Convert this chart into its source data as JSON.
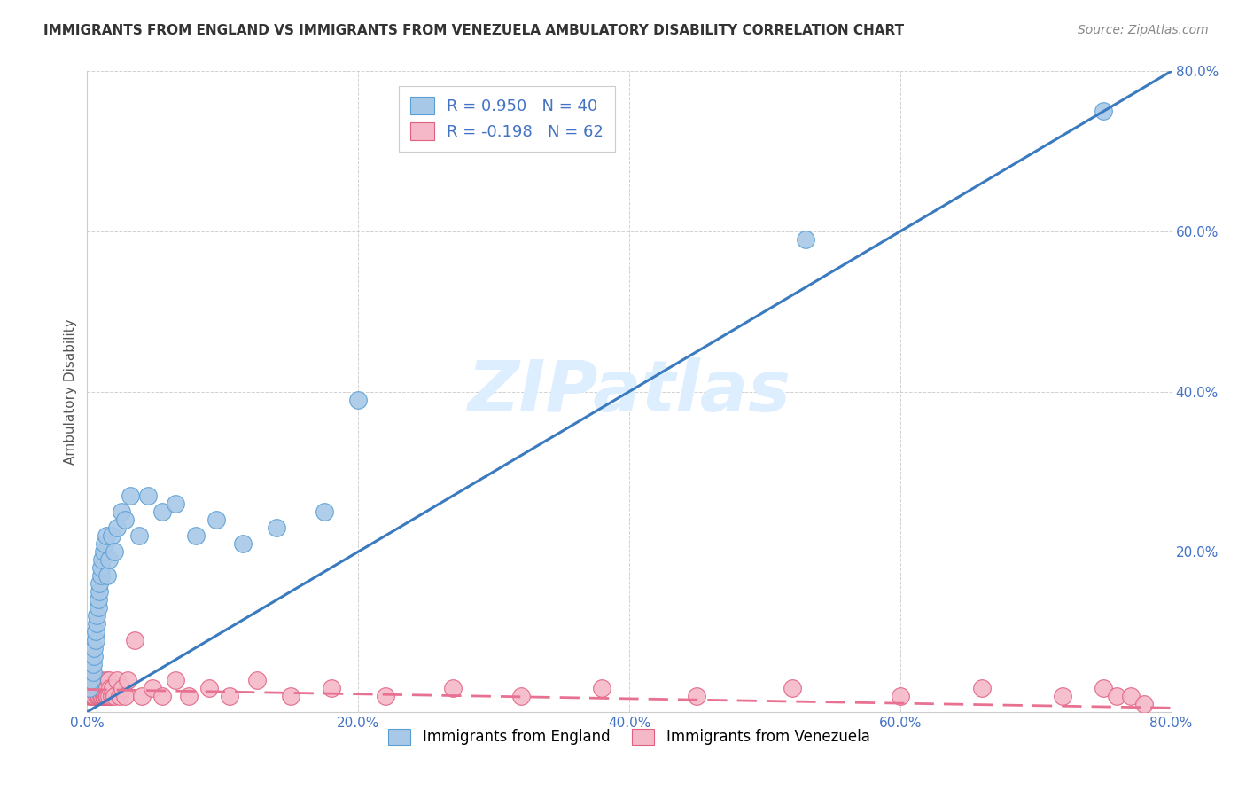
{
  "title": "IMMIGRANTS FROM ENGLAND VS IMMIGRANTS FROM VENEZUELA AMBULATORY DISABILITY CORRELATION CHART",
  "source": "Source: ZipAtlas.com",
  "ylabel": "Ambulatory Disability",
  "xlim": [
    0.0,
    0.8
  ],
  "ylim": [
    0.0,
    0.8
  ],
  "xticks": [
    0.0,
    0.2,
    0.4,
    0.6,
    0.8
  ],
  "yticks": [
    0.0,
    0.2,
    0.4,
    0.6,
    0.8
  ],
  "xtick_labels": [
    "0.0%",
    "20.0%",
    "40.0%",
    "60.0%",
    "80.0%"
  ],
  "ytick_labels": [
    "",
    "20.0%",
    "40.0%",
    "60.0%",
    "80.0%"
  ],
  "england_color": "#a8c8e8",
  "england_edge_color": "#5a9fd4",
  "venezuela_color": "#f4b8c8",
  "venezuela_edge_color": "#e06080",
  "england_R": 0.95,
  "england_N": 40,
  "venezuela_R": -0.198,
  "venezuela_N": 62,
  "england_line_color": "#3a7abf",
  "venezuela_line_color": "#e87090",
  "watermark": "ZIPatlas",
  "watermark_color": "#ddeeff",
  "tick_color": "#4472c4",
  "england_x": [
    0.002,
    0.003,
    0.004,
    0.004,
    0.005,
    0.005,
    0.006,
    0.006,
    0.007,
    0.007,
    0.008,
    0.008,
    0.009,
    0.009,
    0.01,
    0.01,
    0.011,
    0.012,
    0.013,
    0.014,
    0.015,
    0.016,
    0.018,
    0.02,
    0.022,
    0.025,
    0.028,
    0.032,
    0.038,
    0.045,
    0.055,
    0.065,
    0.08,
    0.095,
    0.115,
    0.14,
    0.175,
    0.2,
    0.53,
    0.75
  ],
  "england_y": [
    0.03,
    0.04,
    0.05,
    0.06,
    0.07,
    0.08,
    0.09,
    0.1,
    0.11,
    0.12,
    0.13,
    0.14,
    0.15,
    0.16,
    0.17,
    0.18,
    0.19,
    0.2,
    0.21,
    0.22,
    0.17,
    0.19,
    0.22,
    0.2,
    0.23,
    0.25,
    0.24,
    0.27,
    0.22,
    0.27,
    0.25,
    0.26,
    0.22,
    0.24,
    0.21,
    0.23,
    0.25,
    0.39,
    0.59,
    0.75
  ],
  "england_line_x": [
    0.0,
    0.8
  ],
  "england_line_y": [
    0.0,
    0.8
  ],
  "venezuela_line_x": [
    0.0,
    0.8
  ],
  "venezuela_line_y": [
    0.028,
    0.005
  ],
  "venezuela_x": [
    0.002,
    0.003,
    0.003,
    0.004,
    0.004,
    0.005,
    0.005,
    0.006,
    0.006,
    0.007,
    0.007,
    0.008,
    0.008,
    0.009,
    0.009,
    0.01,
    0.01,
    0.011,
    0.011,
    0.012,
    0.012,
    0.013,
    0.013,
    0.014,
    0.014,
    0.015,
    0.015,
    0.016,
    0.016,
    0.017,
    0.018,
    0.019,
    0.02,
    0.022,
    0.024,
    0.026,
    0.028,
    0.03,
    0.035,
    0.04,
    0.048,
    0.055,
    0.065,
    0.075,
    0.09,
    0.105,
    0.125,
    0.15,
    0.18,
    0.22,
    0.27,
    0.32,
    0.38,
    0.45,
    0.52,
    0.6,
    0.66,
    0.72,
    0.75,
    0.76,
    0.77,
    0.78
  ],
  "venezuela_y": [
    0.02,
    0.03,
    0.02,
    0.04,
    0.02,
    0.03,
    0.02,
    0.04,
    0.03,
    0.02,
    0.03,
    0.02,
    0.04,
    0.02,
    0.03,
    0.02,
    0.04,
    0.03,
    0.02,
    0.03,
    0.02,
    0.03,
    0.02,
    0.04,
    0.02,
    0.03,
    0.02,
    0.04,
    0.02,
    0.03,
    0.02,
    0.03,
    0.02,
    0.04,
    0.02,
    0.03,
    0.02,
    0.04,
    0.09,
    0.02,
    0.03,
    0.02,
    0.04,
    0.02,
    0.03,
    0.02,
    0.04,
    0.02,
    0.03,
    0.02,
    0.03,
    0.02,
    0.03,
    0.02,
    0.03,
    0.02,
    0.03,
    0.02,
    0.03,
    0.02,
    0.02,
    0.01
  ]
}
